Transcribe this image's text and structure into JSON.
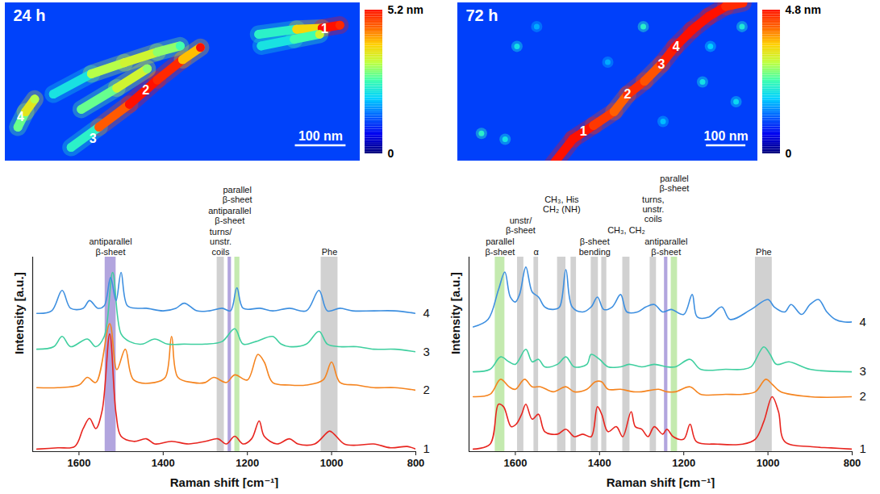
{
  "chart_data": [
    {
      "type": "heatmap",
      "title": "24 h",
      "xlim": [
        0,
        700
      ],
      "ylim": [
        0,
        312
      ],
      "tick_labels": false,
      "background": 1.1,
      "fibrils": [
        [
          [
            25,
            245,
            2.8
          ],
          [
            40,
            215,
            3.6
          ],
          [
            58,
            190,
            3.2
          ]
        ],
        [
          [
            130,
            285,
            2.4
          ],
          [
            185,
            245,
            4.6
          ],
          [
            245,
            200,
            5.2
          ],
          [
            300,
            152,
            5.0
          ],
          [
            350,
            112,
            4.0
          ],
          [
            385,
            88,
            5.2
          ]
        ],
        [
          [
            95,
            180,
            2.2
          ],
          [
            170,
            140,
            3.2
          ],
          [
            235,
            118,
            3.4
          ],
          [
            300,
            97,
            3.0
          ],
          [
            345,
            85,
            2.6
          ]
        ],
        [
          [
            150,
            210,
            2.8
          ],
          [
            220,
            168,
            3.4
          ],
          [
            280,
            130,
            3.0
          ]
        ],
        [
          [
            500,
            62,
            2.4
          ],
          [
            575,
            52,
            3.8
          ],
          [
            625,
            50,
            5.2
          ],
          [
            660,
            44,
            5.0
          ]
        ],
        [
          [
            505,
            85,
            2.2
          ],
          [
            570,
            72,
            2.6
          ],
          [
            620,
            62,
            3.4
          ]
        ]
      ],
      "point_labels": [
        {
          "text": "1",
          "x": 630,
          "y": 52
        },
        {
          "text": "2",
          "x": 277,
          "y": 173
        },
        {
          "text": "3",
          "x": 173,
          "y": 268
        },
        {
          "text": "4",
          "x": 30,
          "y": 225
        }
      ],
      "scale_bar": {
        "length": 100,
        "label": "100 nm"
      },
      "color_bar": {
        "range": [
          0,
          5.2
        ],
        "ticks": [
          0,
          {
            "value": 5.2,
            "label": "5.2 nm"
          }
        ]
      }
    },
    {
      "type": "line",
      "xlabel": "Raman shift [cm⁻¹]",
      "ylabel": "Intensity [a.u.]",
      "xlim": [
        1710,
        800
      ],
      "xticks": [
        800,
        1000,
        1200,
        1400,
        1600
      ],
      "ylim": [
        0,
        7.6
      ],
      "tick_labels": "x",
      "series": [
        {
          "name": "1",
          "color": "#e8251f",
          "x": [
            1700,
            1650,
            1610,
            1590,
            1575,
            1560,
            1545,
            1527,
            1512,
            1500,
            1470,
            1440,
            1420,
            1380,
            1340,
            1300,
            1270,
            1250,
            1230,
            1210,
            1190,
            1172,
            1160,
            1130,
            1100,
            1080,
            1040,
            1005,
            995,
            970,
            940,
            900,
            860,
            820,
            800
          ],
          "values": [
            0.1,
            0.15,
            0.2,
            0.9,
            1.3,
            0.9,
            1.6,
            4.6,
            1.5,
            0.6,
            0.4,
            0.5,
            0.3,
            0.4,
            0.3,
            0.4,
            0.5,
            0.3,
            0.6,
            0.3,
            0.5,
            1.2,
            0.6,
            0.3,
            0.5,
            0.3,
            0.3,
            0.8,
            0.7,
            0.3,
            0.25,
            0.3,
            0.15,
            0.2,
            0.1
          ]
        },
        {
          "name": "2",
          "color": "#f5841f",
          "x": [
            1700,
            1650,
            1600,
            1580,
            1560,
            1527,
            1510,
            1490,
            1470,
            1420,
            1395,
            1380,
            1365,
            1330,
            1300,
            1280,
            1250,
            1230,
            1200,
            1175,
            1160,
            1140,
            1100,
            1060,
            1020,
            1000,
            980,
            940,
            900,
            850,
            800
          ],
          "values": [
            2.5,
            2.5,
            2.6,
            2.9,
            2.7,
            5.0,
            3.2,
            4.0,
            2.8,
            2.7,
            2.9,
            4.5,
            2.9,
            2.7,
            2.7,
            2.9,
            2.7,
            3.0,
            2.8,
            3.8,
            3.5,
            2.7,
            2.6,
            2.6,
            2.8,
            3.5,
            2.7,
            2.6,
            2.5,
            2.5,
            2.4
          ]
        },
        {
          "name": "3",
          "color": "#3fcf9f",
          "x": [
            1700,
            1660,
            1640,
            1620,
            1580,
            1560,
            1540,
            1520,
            1500,
            1480,
            1450,
            1420,
            1390,
            1350,
            1300,
            1260,
            1230,
            1210,
            1180,
            1140,
            1120,
            1100,
            1060,
            1030,
            1010,
            980,
            940,
            900,
            850,
            800
          ],
          "values": [
            4.0,
            4.1,
            4.5,
            4.1,
            4.4,
            4.1,
            4.5,
            7.0,
            4.6,
            4.3,
            4.2,
            4.4,
            4.2,
            4.2,
            4.2,
            4.3,
            4.8,
            4.2,
            4.3,
            4.5,
            4.2,
            4.1,
            4.2,
            4.7,
            4.2,
            4.1,
            4.1,
            4.0,
            4.0,
            3.9
          ]
        },
        {
          "name": "4",
          "color": "#3d8fe0",
          "x": [
            1700,
            1665,
            1640,
            1620,
            1590,
            1575,
            1555,
            1540,
            1525,
            1512,
            1500,
            1485,
            1460,
            1440,
            1400,
            1370,
            1350,
            1320,
            1290,
            1260,
            1240,
            1225,
            1210,
            1170,
            1140,
            1100,
            1060,
            1030,
            1010,
            980,
            950,
            900,
            850,
            800
          ],
          "values": [
            5.4,
            5.5,
            6.3,
            5.6,
            5.6,
            5.9,
            5.6,
            5.7,
            6.8,
            5.9,
            7.0,
            5.7,
            5.6,
            5.6,
            5.5,
            5.6,
            5.8,
            5.5,
            5.5,
            5.6,
            5.5,
            6.4,
            5.6,
            5.6,
            5.5,
            5.6,
            5.5,
            6.3,
            5.5,
            5.6,
            5.5,
            5.5,
            5.5,
            5.4
          ]
        }
      ],
      "bands": [
        {
          "x": [
            1512,
            1538
          ],
          "color": "#9f8fd6",
          "label": "antiparallel β-sheet"
        },
        {
          "x": [
            1255,
            1272
          ],
          "color": "#c6c6c6",
          "label": "turns/ unstr. coils"
        },
        {
          "x": [
            1238,
            1246
          ],
          "color": "#9f8fd6",
          "label": "antiparallel β-sheet"
        },
        {
          "x": [
            1218,
            1230
          ],
          "color": "#b5e59b",
          "label": "parallel β-sheet"
        },
        {
          "x": [
            985,
            1025
          ],
          "color": "#c6c6c6",
          "label": "Phe"
        }
      ]
    },
    {
      "type": "heatmap",
      "title": "72 h",
      "xlim": [
        0,
        760
      ],
      "ylim": [
        0,
        400
      ],
      "tick_labels": false,
      "background": 1.0,
      "fibrils": [
        [
          [
            240,
            410,
            4.8
          ],
          [
            292,
            344,
            4.8
          ],
          [
            344,
            310,
            4.5
          ],
          [
            396,
            275,
            4.2
          ],
          [
            430,
            232,
            4.6
          ],
          [
            473,
            198,
            4.3
          ],
          [
            516,
            155,
            4.7
          ],
          [
            550,
            112,
            4.8
          ],
          [
            593,
            69,
            4.8
          ],
          [
            636,
            34,
            4.8
          ],
          [
            679,
            9,
            4.6
          ],
          [
            722,
            0,
            4.6
          ]
        ]
      ],
      "spots": [
        [
          150,
          110,
          2.0
        ],
        [
          470,
          60,
          2.2
        ],
        [
          640,
          110,
          1.8
        ],
        [
          60,
          330,
          2.2
        ],
        [
          120,
          345,
          2.0
        ],
        [
          705,
          250,
          1.9
        ],
        [
          620,
          200,
          2.0
        ],
        [
          200,
          60,
          1.6
        ],
        [
          520,
          300,
          1.7
        ],
        [
          380,
          150,
          1.6
        ],
        [
          720,
          60,
          2.1
        ]
      ],
      "point_labels": [
        {
          "text": "1",
          "x": 318,
          "y": 326
        },
        {
          "text": "2",
          "x": 430,
          "y": 232
        },
        {
          "text": "3",
          "x": 516,
          "y": 155
        },
        {
          "text": "4",
          "x": 553,
          "y": 110
        }
      ],
      "scale_bar": {
        "length": 100,
        "label": "100 nm"
      },
      "color_bar": {
        "range": [
          0,
          4.8
        ],
        "ticks": [
          0,
          {
            "value": 4.8,
            "label": "4.8 nm"
          }
        ]
      }
    },
    {
      "type": "line",
      "xlabel": "Raman shift [cm⁻¹]",
      "ylabel": "Intensity [a.u.]",
      "xlim": [
        1710,
        800
      ],
      "xticks": [
        800,
        1000,
        1200,
        1400,
        1600
      ],
      "ylim": [
        0,
        7.8
      ],
      "tick_labels": "x",
      "series": [
        {
          "name": "1",
          "color": "#e8251f",
          "x": [
            1700,
            1660,
            1640,
            1628,
            1610,
            1598,
            1585,
            1575,
            1560,
            1545,
            1530,
            1500,
            1480,
            1460,
            1440,
            1420,
            1405,
            1395,
            1380,
            1360,
            1345,
            1325,
            1315,
            1300,
            1285,
            1270,
            1250,
            1240,
            1225,
            1200,
            1185,
            1170,
            1120,
            1060,
            1030,
            1010,
            990,
            975,
            960,
            900,
            850,
            800
          ],
          "values": [
            0.1,
            0.3,
            1.9,
            1.8,
            1.0,
            1.1,
            1.5,
            1.9,
            1.3,
            1.5,
            0.8,
            0.7,
            0.9,
            0.6,
            0.7,
            0.6,
            1.8,
            1.5,
            0.8,
            1.0,
            0.6,
            1.6,
            1.0,
            0.9,
            0.6,
            1.0,
            0.7,
            0.9,
            0.6,
            0.5,
            1.1,
            0.4,
            0.3,
            0.3,
            0.5,
            1.2,
            2.2,
            1.6,
            0.4,
            0.2,
            0.15,
            0.1
          ]
        },
        {
          "name": "2",
          "color": "#f5841f",
          "x": [
            1700,
            1660,
            1635,
            1615,
            1600,
            1578,
            1560,
            1540,
            1510,
            1480,
            1460,
            1430,
            1410,
            1395,
            1380,
            1350,
            1320,
            1300,
            1260,
            1240,
            1220,
            1185,
            1160,
            1100,
            1060,
            1030,
            1005,
            990,
            970,
            900,
            800
          ],
          "values": [
            2.2,
            2.3,
            2.9,
            2.6,
            2.5,
            2.9,
            2.6,
            2.6,
            2.4,
            2.6,
            2.4,
            2.5,
            2.8,
            2.8,
            2.5,
            2.5,
            2.4,
            2.4,
            2.5,
            2.4,
            2.4,
            2.6,
            2.3,
            2.3,
            2.3,
            2.4,
            2.9,
            2.7,
            2.4,
            2.2,
            2.2
          ]
        },
        {
          "name": "3",
          "color": "#3fcf9f",
          "x": [
            1700,
            1660,
            1635,
            1615,
            1600,
            1575,
            1560,
            1545,
            1530,
            1500,
            1480,
            1460,
            1430,
            1420,
            1400,
            1380,
            1350,
            1330,
            1300,
            1270,
            1240,
            1220,
            1185,
            1160,
            1100,
            1060,
            1040,
            1010,
            995,
            980,
            950,
            900,
            800
          ],
          "values": [
            3.2,
            3.3,
            3.8,
            3.6,
            3.5,
            4.1,
            3.6,
            3.7,
            3.4,
            3.5,
            3.8,
            3.4,
            3.5,
            3.9,
            3.7,
            3.4,
            3.4,
            3.5,
            3.4,
            3.5,
            3.4,
            3.4,
            3.7,
            3.3,
            3.3,
            3.3,
            3.4,
            4.2,
            3.9,
            3.5,
            3.6,
            3.3,
            3.2
          ]
        },
        {
          "name": "4",
          "color": "#3d8fe0",
          "x": [
            1700,
            1665,
            1640,
            1625,
            1612,
            1600,
            1590,
            1575,
            1560,
            1545,
            1530,
            1510,
            1495,
            1480,
            1465,
            1440,
            1420,
            1405,
            1390,
            1370,
            1350,
            1335,
            1310,
            1290,
            1270,
            1250,
            1230,
            1200,
            1180,
            1168,
            1140,
            1110,
            1090,
            1040,
            1000,
            985,
            960,
            945,
            920,
            900,
            880,
            860,
            840,
            820,
            800
          ],
          "values": [
            5.0,
            5.3,
            6.5,
            7.2,
            6.2,
            6.0,
            6.3,
            7.4,
            6.4,
            6.2,
            5.8,
            5.7,
            5.8,
            7.3,
            5.8,
            5.6,
            5.8,
            6.2,
            5.7,
            5.8,
            6.3,
            5.6,
            5.6,
            5.8,
            5.9,
            5.6,
            5.7,
            5.5,
            6.3,
            5.4,
            5.4,
            5.8,
            5.3,
            5.7,
            6.1,
            5.8,
            5.6,
            5.9,
            5.5,
            5.9,
            6.1,
            5.6,
            5.3,
            5.2,
            5.2
          ]
        }
      ],
      "bands": [
        {
          "x": [
            1625,
            1648
          ],
          "color": "#b5e59b",
          "label": "parallel β-sheet"
        },
        {
          "x": [
            1580,
            1595
          ],
          "color": "#c6c6c6",
          "label": "unstr/ β-sheet"
        },
        {
          "x": [
            1545,
            1556
          ],
          "color": "#c6c6c6",
          "label": "α"
        },
        {
          "x": [
            1480,
            1500
          ],
          "color": "#c6c6c6",
          "label": "CH₃, His CH₂ (NH)"
        },
        {
          "x": [
            1455,
            1468
          ],
          "color": "#c6c6c6"
        },
        {
          "x": [
            1403,
            1420
          ],
          "color": "#c6c6c6",
          "label": "β-sheet bending"
        },
        {
          "x": [
            1383,
            1395
          ],
          "color": "#c6c6c6"
        },
        {
          "x": [
            1328,
            1345
          ],
          "color": "#c6c6c6",
          "label": "CH₃, CH₂"
        },
        {
          "x": [
            1265,
            1280
          ],
          "color": "#c6c6c6",
          "label": "turns, unstr. coils"
        },
        {
          "x": [
            1238,
            1246
          ],
          "color": "#9f8fd6",
          "label": "antiparallel β-sheet"
        },
        {
          "x": [
            1215,
            1230
          ],
          "color": "#b5e59b",
          "label": "parallel β-sheet"
        },
        {
          "x": [
            990,
            1030
          ],
          "color": "#c6c6c6",
          "label": "Phe"
        }
      ]
    }
  ]
}
